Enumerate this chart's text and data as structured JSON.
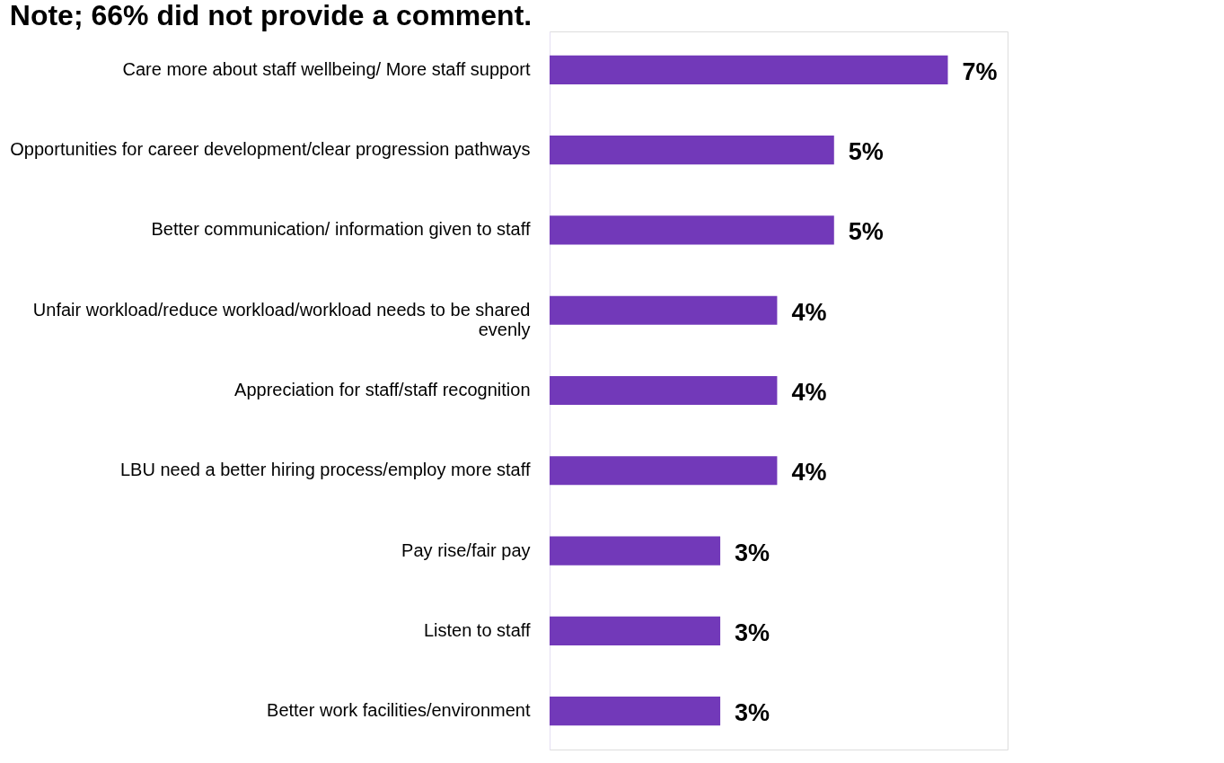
{
  "chart_data": {
    "type": "bar",
    "orientation": "horizontal",
    "title": "Note; 66% did not provide a comment.",
    "categories": [
      "Care more about staff wellbeing/ More staff support",
      "Opportunities for career development/clear progression pathways",
      "Better communication/ information given to staff",
      "Unfair workload/reduce workload/workload needs to be shared evenly",
      "Appreciation for staff/staff recognition",
      "LBU need a better hiring process/employ more staff",
      "Pay rise/fair pay",
      "Listen to staff",
      "Better work facilities/environment"
    ],
    "values": [
      7,
      5,
      5,
      4,
      4,
      4,
      3,
      3,
      3
    ],
    "value_labels": [
      "7%",
      "5%",
      "5%",
      "4%",
      "4%",
      "4%",
      "3%",
      "3%",
      "3%"
    ],
    "color": "#7239b9"
  }
}
